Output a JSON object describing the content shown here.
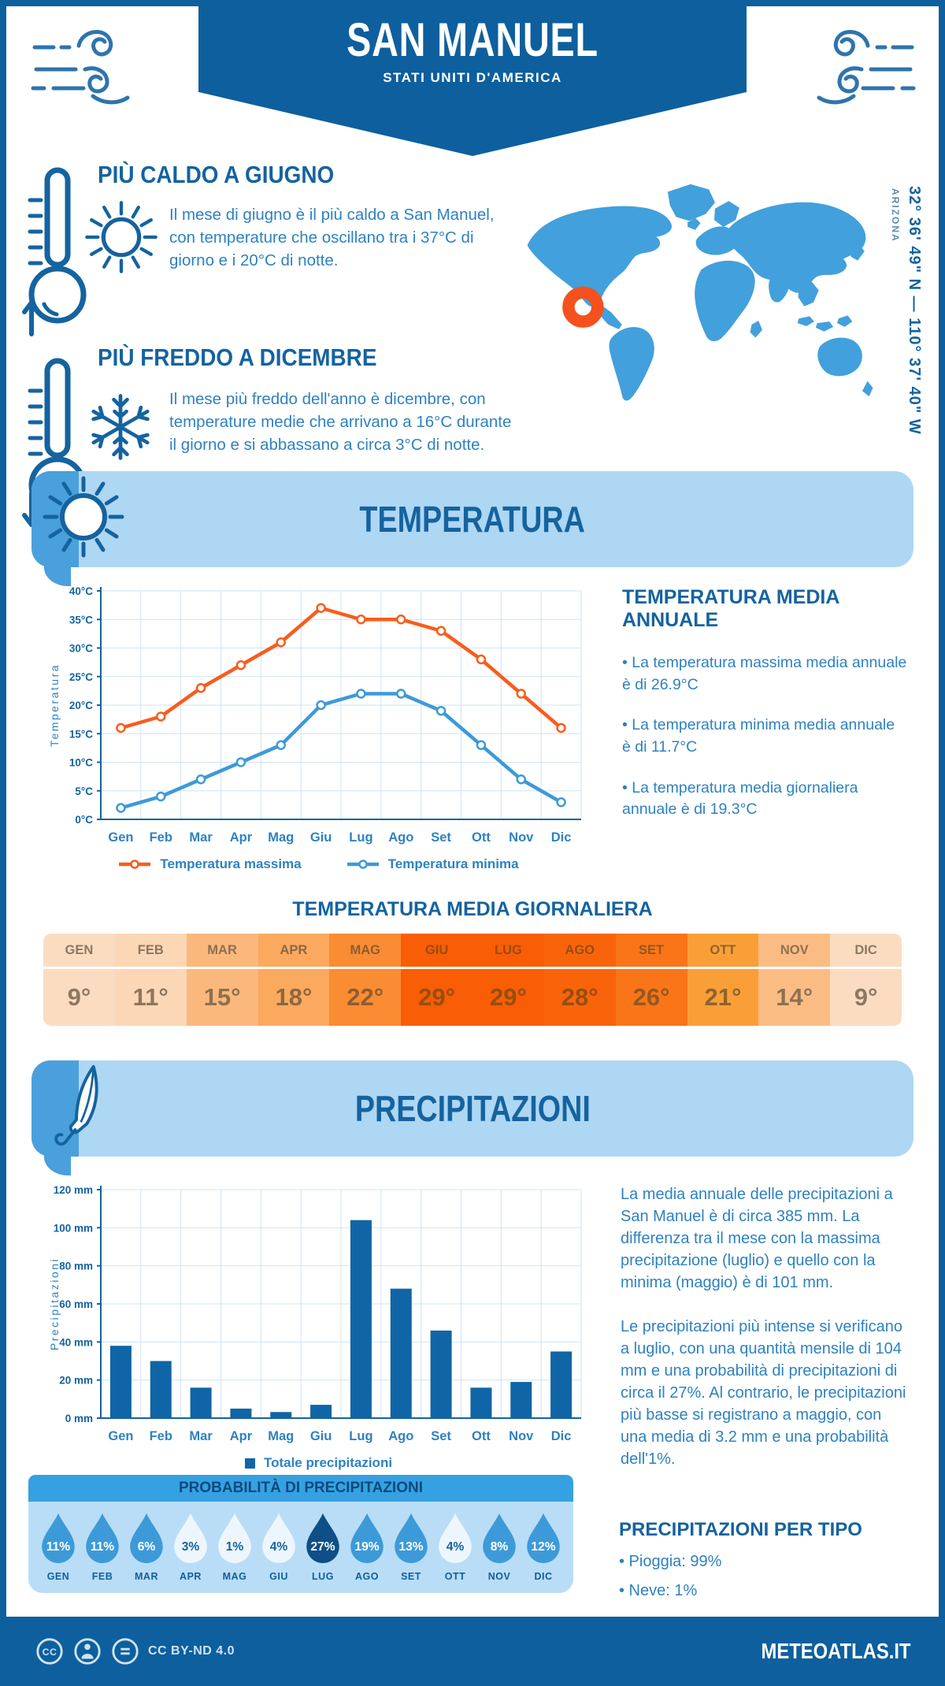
{
  "header": {
    "title": "SAN MANUEL",
    "subtitle": "STATI UNITI D'AMERICA"
  },
  "location": {
    "coordinates": "32° 36' 49\" N — 110° 37' 40\" W",
    "region": "ARIZONA"
  },
  "highlights": {
    "hot": {
      "heading": "PIÙ CALDO A GIUGNO",
      "text": "Il mese di giugno è il più caldo a San Manuel, con temperature che oscillano tra i 37°C di giorno e i 20°C di notte."
    },
    "cold": {
      "heading": "PIÙ FREDDO A DICEMBRE",
      "text": "Il mese più freddo dell'anno è dicembre, con temperature medie che arrivano a 16°C durante il giorno e si abbassano a circa 3°C di notte."
    }
  },
  "temperature": {
    "section_title": "TEMPERATURA",
    "annual": {
      "heading": "TEMPERATURA MEDIA ANNUALE",
      "bullets": [
        "• La temperatura massima media annuale è di 26.9°C",
        "• La temperatura minima media annuale è di 11.7°C",
        "• La temperatura media giornaliera annuale è di 19.3°C"
      ]
    },
    "daily": {
      "heading": "TEMPERATURA MEDIA GIORNALIERA",
      "months": [
        "GEN",
        "FEB",
        "MAR",
        "APR",
        "MAG",
        "GIU",
        "LUG",
        "AGO",
        "SET",
        "OTT",
        "NOV",
        "DIC"
      ],
      "values": [
        "9°",
        "11°",
        "15°",
        "18°",
        "22°",
        "29°",
        "29°",
        "28°",
        "26°",
        "21°",
        "14°",
        "9°"
      ],
      "cell_colors": [
        "#fcdcc1",
        "#fcd7b5",
        "#fbb87c",
        "#fba95e",
        "#fa8c33",
        "#f95d05",
        "#f95d05",
        "#f9640a",
        "#f97517",
        "#fa9f38",
        "#fbbc84",
        "#fcdcc1"
      ],
      "text_colors": [
        "#8c7963",
        "#8c7660",
        "#8c7050",
        "#8c6843",
        "#8f5d30",
        "#964e10",
        "#964e10",
        "#964e12",
        "#945820",
        "#8f632e",
        "#8c7252",
        "#8c7963"
      ]
    }
  },
  "precipitation": {
    "section_title": "PRECIPITAZIONI",
    "paragraphs": [
      "La media annuale delle precipitazioni a San Manuel è di circa 385 mm. La differenza tra il mese con la massima precipitazione (luglio) e quello con la minima (maggio) è di 101 mm.",
      "Le precipitazioni più intense si verificano a luglio, con una quantità mensile di 104 mm e una probabilità di precipitazioni di circa il 27%. Al contrario, le precipitazioni più basse si registrano a maggio, con una media di 3.2 mm e una probabilità dell'1%."
    ],
    "probability": {
      "title": "PROBABILITÀ DI PRECIPITAZIONI",
      "months": [
        "GEN",
        "FEB",
        "MAR",
        "APR",
        "MAG",
        "GIU",
        "LUG",
        "AGO",
        "SET",
        "OTT",
        "NOV",
        "DIC"
      ],
      "values": [
        "11%",
        "11%",
        "6%",
        "3%",
        "1%",
        "4%",
        "27%",
        "19%",
        "13%",
        "4%",
        "8%",
        "12%"
      ],
      "drop_styles": [
        "mid",
        "mid",
        "mid",
        "light",
        "light",
        "light",
        "dark",
        "mid",
        "mid",
        "light",
        "mid",
        "mid"
      ]
    },
    "by_type": {
      "heading": "PRECIPITAZIONI PER TIPO",
      "bullets": [
        "• Pioggia: 99%",
        "• Neve: 1%"
      ]
    }
  },
  "footer": {
    "license": "CC BY-ND 4.0",
    "site": "METEOATLAS.IT"
  },
  "colors": {
    "primary": "#0e5f9e",
    "heading": "#15639f",
    "body_text": "#2e82c0",
    "panel_light": "#aed7f4",
    "strip": "#4aa0dc",
    "map": "#42a0dc",
    "marker": "#f4511e",
    "max_line": "#f75d1c",
    "min_line": "#3d9ad8",
    "bar": "#1065a6",
    "prob_header": "#36a1e1",
    "prob_panel": "#b9ddf6",
    "drop_mid": "#3d9ad8",
    "drop_light": "#eef6fd",
    "drop_dark": "#0d4f86"
  },
  "chart_data": [
    {
      "type": "line",
      "categories": [
        "Gen",
        "Feb",
        "Mar",
        "Apr",
        "Mag",
        "Giu",
        "Lug",
        "Ago",
        "Set",
        "Ott",
        "Nov",
        "Dic"
      ],
      "series": [
        {
          "name": "Temperatura massima",
          "color": "#f75d1c",
          "values": [
            16,
            18,
            23,
            27,
            31,
            37,
            35,
            35,
            33,
            28,
            22,
            16
          ]
        },
        {
          "name": "Temperatura minima",
          "color": "#3d9ad8",
          "values": [
            2,
            4,
            7,
            10,
            13,
            20,
            22,
            22,
            19,
            13,
            7,
            3
          ]
        }
      ],
      "ylabel": "Temperatura",
      "ylim": [
        0,
        40
      ],
      "ytick_step": 5,
      "unit": "°C",
      "grid": true,
      "legend_position": "bottom"
    },
    {
      "type": "bar",
      "categories": [
        "Gen",
        "Feb",
        "Mar",
        "Apr",
        "Mag",
        "Giu",
        "Lug",
        "Ago",
        "Set",
        "Ott",
        "Nov",
        "Dic"
      ],
      "series": [
        {
          "name": "Totale precipitazioni",
          "color": "#1065a6",
          "values": [
            38,
            30,
            16,
            5,
            3.2,
            7,
            104,
            68,
            46,
            16,
            19,
            35
          ]
        }
      ],
      "ylabel": "Precipitazioni",
      "ylim": [
        0,
        120
      ],
      "ytick_step": 20,
      "unit": " mm",
      "grid": true,
      "legend_position": "bottom"
    }
  ]
}
